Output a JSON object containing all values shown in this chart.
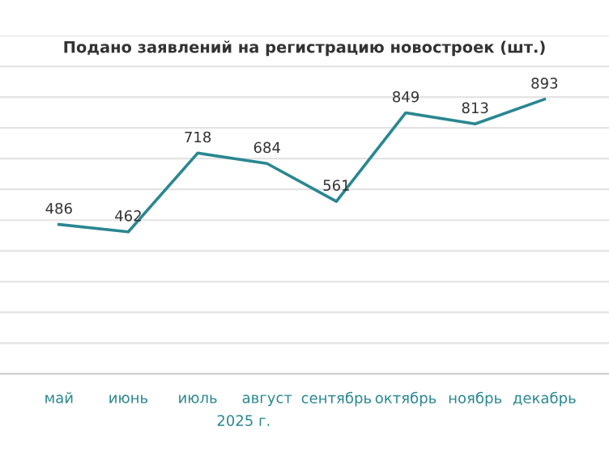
{
  "chart_data": {
    "type": "line",
    "title": "Подано заявлений на регистрацию новостроек (шт.)",
    "categories": [
      "май",
      "июнь",
      "июль",
      "август",
      "сентябрь",
      "октябрь",
      "ноябрь",
      "декабрь"
    ],
    "series": [
      {
        "color": "#2a8791",
        "values": [
          486,
          462,
          718,
          684,
          561,
          849,
          813,
          893
        ]
      }
    ],
    "data_labels": true,
    "ylim": [
      0,
      1100
    ],
    "yticks": [
      {
        "value": 0,
        "label": null
      },
      {
        "value": 100,
        "label": null
      },
      {
        "value": 200,
        "label": null
      },
      {
        "value": 300,
        "label": null
      },
      {
        "value": 400,
        "label": null
      },
      {
        "value": 500,
        "label": null
      },
      {
        "value": 600,
        "label": null
      },
      {
        "value": 700,
        "label": null
      },
      {
        "value": 800,
        "label": null
      },
      {
        "value": 900,
        "label": null
      },
      {
        "value": 1000,
        "label": null
      },
      {
        "value": 1100,
        "label": null
      }
    ],
    "grid": "y",
    "tick_labels": "x",
    "marker": "none",
    "line_style": "solid",
    "annotations": [
      "2025 г."
    ]
  }
}
